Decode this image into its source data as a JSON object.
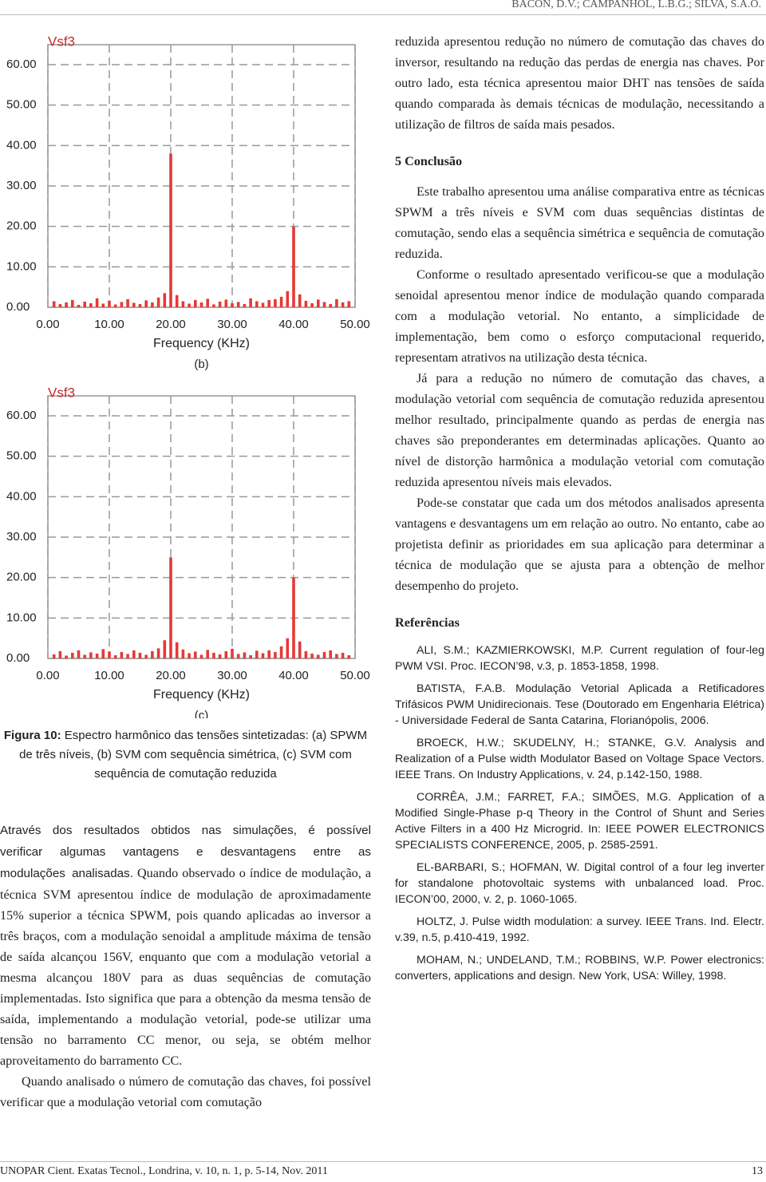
{
  "header": {
    "authors": "BACON, D.V.; CAMPANHOL, L.B.G.; SILVA, S.A.O."
  },
  "chart_data": [
    {
      "type": "bar",
      "title": "Vsf3",
      "xlabel": "Frequency (KHz)",
      "panel": "(b)",
      "color": "#e53935",
      "x": [
        1,
        2,
        3,
        4,
        5,
        6,
        7,
        8,
        9,
        10,
        11,
        12,
        13,
        14,
        15,
        16,
        17,
        18,
        19,
        20,
        21,
        22,
        23,
        24,
        25,
        26,
        27,
        28,
        29,
        30,
        31,
        32,
        33,
        34,
        35,
        36,
        37,
        38,
        39,
        40,
        41,
        42,
        43,
        44,
        45,
        46,
        47,
        48,
        49
      ],
      "values": [
        1.5,
        0.8,
        1.2,
        1.8,
        0.6,
        1.4,
        1.0,
        2.2,
        0.9,
        1.6,
        0.7,
        1.3,
        2.0,
        1.1,
        0.8,
        1.7,
        1.2,
        2.4,
        3.5,
        38,
        3.0,
        1.5,
        0.9,
        1.8,
        1.2,
        2.1,
        0.7,
        1.4,
        1.9,
        1.0,
        1.3,
        0.8,
        2.2,
        1.5,
        1.1,
        1.8,
        2.0,
        2.6,
        4.0,
        20,
        3.2,
        1.6,
        1.0,
        1.9,
        1.3,
        0.8,
        2.0,
        1.2,
        1.5
      ],
      "xlim": [
        0,
        50
      ],
      "ylim": [
        0,
        60
      ],
      "xticks": [
        {
          "value": 0,
          "label": "0.00"
        },
        {
          "value": 10,
          "label": "10.00"
        },
        {
          "value": 20,
          "label": "20.00"
        },
        {
          "value": 30,
          "label": "30.00"
        },
        {
          "value": 40,
          "label": "40.00"
        },
        {
          "value": 50,
          "label": "50.00"
        }
      ],
      "yticks": [
        {
          "value": 0,
          "label": "0.00"
        },
        {
          "value": 10,
          "label": "10.00"
        },
        {
          "value": 20,
          "label": "20.00"
        },
        {
          "value": 30,
          "label": "30.00"
        },
        {
          "value": 40,
          "label": "40.00"
        },
        {
          "value": 50,
          "label": "50.00"
        },
        {
          "value": 60,
          "label": "60.00"
        }
      ],
      "grid": true
    },
    {
      "type": "bar",
      "title": "Vsf3",
      "xlabel": "Frequency (KHz)",
      "panel": "(c)",
      "color": "#e53935",
      "x": [
        1,
        2,
        3,
        4,
        5,
        6,
        7,
        8,
        9,
        10,
        11,
        12,
        13,
        14,
        15,
        16,
        17,
        18,
        19,
        20,
        21,
        22,
        23,
        24,
        25,
        26,
        27,
        28,
        29,
        30,
        31,
        32,
        33,
        34,
        35,
        36,
        37,
        38,
        39,
        40,
        41,
        42,
        43,
        44,
        45,
        46,
        47,
        48,
        49
      ],
      "values": [
        1.0,
        1.8,
        0.7,
        1.4,
        2.0,
        0.9,
        1.5,
        1.2,
        2.3,
        1.7,
        0.8,
        1.6,
        1.1,
        2.0,
        1.4,
        0.9,
        1.8,
        2.5,
        4.5,
        25,
        4.0,
        2.2,
        1.3,
        1.7,
        0.9,
        2.1,
        1.4,
        1.0,
        1.8,
        2.4,
        1.1,
        1.5,
        0.8,
        1.9,
        1.3,
        2.0,
        1.6,
        3.0,
        5.0,
        20,
        4.2,
        1.8,
        1.2,
        0.9,
        1.6,
        2.0,
        1.1,
        1.4,
        0.8
      ],
      "xlim": [
        0,
        50
      ],
      "ylim": [
        0,
        60
      ],
      "xticks": [
        {
          "value": 0,
          "label": "0.00"
        },
        {
          "value": 10,
          "label": "10.00"
        },
        {
          "value": 20,
          "label": "20.00"
        },
        {
          "value": 30,
          "label": "30.00"
        },
        {
          "value": 40,
          "label": "40.00"
        },
        {
          "value": 50,
          "label": "50.00"
        }
      ],
      "yticks": [
        {
          "value": 0,
          "label": "0.00"
        },
        {
          "value": 10,
          "label": "10.00"
        },
        {
          "value": 20,
          "label": "20.00"
        },
        {
          "value": 30,
          "label": "30.00"
        },
        {
          "value": 40,
          "label": "40.00"
        },
        {
          "value": 50,
          "label": "50.00"
        },
        {
          "value": 60,
          "label": "60.00"
        }
      ],
      "grid": true
    }
  ],
  "caption": {
    "label": "Figura 10:",
    "text": "Espectro harmônico das tensões sintetizadas: (a) SPWM de três níveis, (b) SVM com sequência simétrica, (c) SVM com sequência de comutação reduzida"
  },
  "left_text": {
    "paragraphs": [
      [
        "Através dos resultados obtidos nas simulações, é possível verificar algumas vantagens e desvantagens entre as modulações analisadas.",
        "Quando observado o índice de modulação, a técnica SVM apresentou índice de modulação de aproximadamente 15% superior a técnica SPWM, pois quando aplicadas ao inversor a três braços, com a modulação senoidal a amplitude máxima de tensão de saída alcançou 156V, enquanto que com a modulação vetorial a mesma alcançou 180V para as duas sequências de comutação implementadas. Isto significa que para a obtenção da mesma tensão de saída, implementando a modulação vetorial, pode-se utilizar uma tensão no barramento CC menor, ou seja, se obtém melhor aproveitamento do barramento CC."
      ],
      [
        "Quando analisado o número de comutação das chaves, foi possível verificar que a modulação vetorial com comutação"
      ]
    ]
  },
  "right_text": {
    "continuation": "reduzida apresentou redução no número de comutação das chaves do inversor, resultando na redução das perdas de energia nas chaves. Por outro lado, esta técnica apresentou maior DHT nas tensões de saída quando comparada às demais técnicas de modulação, necessitando a utilização de filtros de saída mais pesados.",
    "section_title": "5 Conclusão",
    "paragraphs": [
      "Este trabalho apresentou uma análise comparativa entre as técnicas SPWM a três níveis e SVM com duas sequências distintas de comutação, sendo elas a sequência simétrica e sequência de comutação reduzida.",
      "Conforme o resultado apresentado verificou-se que a modulação senoidal apresentou menor índice de modulação quando comparada com a modulação vetorial. No entanto, a simplicidade de implementação, bem como o esforço computacional requerido, representam atrativos na utilização desta técnica.",
      "Já para a redução no número de comutação das chaves, a modulação vetorial com sequência de comutação reduzida apresentou melhor resultado, principalmente quando as perdas de energia nas chaves são preponderantes em determinadas aplicações. Quanto ao nível de distorção harmônica a modulação vetorial com comutação reduzida apresentou níveis mais elevados.",
      "Pode-se constatar que cada um dos métodos analisados apresenta vantagens e desvantagens um em relação ao outro. No entanto, cabe ao projetista definir as prioridades em sua aplicação para determinar a técnica de modulação que se ajusta para a obtenção de melhor desempenho do projeto."
    ],
    "references_title": "Referências",
    "references": [
      "ALI, S.M.; KAZMIERKOWSKI, M.P. Current regulation of four-leg PWM VSI. Proc. IECON’98, v.3, p. 1853-1858, 1998.",
      "BATISTA, F.A.B. Modulação Vetorial Aplicada a Retificadores Trifásicos PWM Unidirecionais. Tese (Doutorado em Engenharia Elétrica) - Universidade Federal de Santa Catarina, Florianópolis, 2006.",
      "BROECK, H.W.; SKUDELNY, H.; STANKE, G.V. Analysis and Realization of a Pulse width Modulator Based on Voltage Space Vectors. IEEE Trans. On Industry Applications, v. 24, p.142-150, 1988.",
      "CORRÊA, J.M.; FARRET, F.A.; SIMÕES, M.G. Application of a Modified Single-Phase p-q Theory in the Control of Shunt and Series Active Filters in a 400 Hz Microgrid. In: IEEE POWER ELECTRONICS SPECIALISTS CONFERENCE, 2005, p. 2585-2591.",
      "EL-BARBARI, S.; HOFMAN, W. Digital control of a four leg inverter for standalone photovoltaic systems with unbalanced load. Proc. IECON’00, 2000, v. 2, p. 1060-1065.",
      "HOLTZ, J. Pulse width modulation: a survey. IEEE Trans. Ind. Electr. v.39, n.5, p.410-419, 1992.",
      "MOHAM, N.; UNDELAND, T.M.; ROBBINS, W.P. Power electronics: converters, applications and design. New York, USA: Willey, 1998."
    ]
  },
  "footer": {
    "journal": "UNOPAR Cient. Exatas Tecnol., Londrina, v. 10, n. 1, p. 5-14, Nov. 2011",
    "page": "13"
  }
}
